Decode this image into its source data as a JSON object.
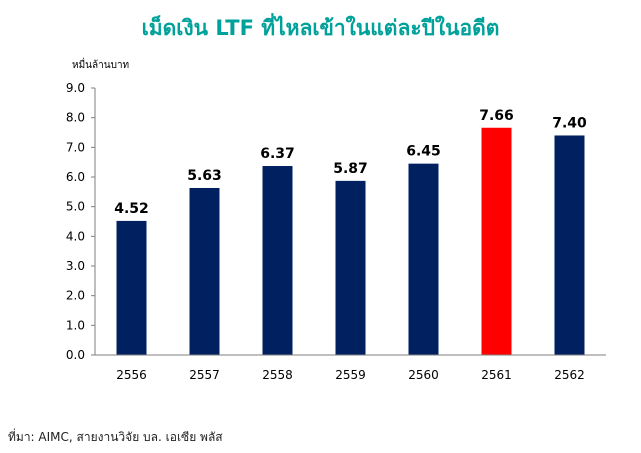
{
  "title": "เม็ดเงิน LTF ที่ไหลเข้าในแต่ละปีในอดีต",
  "unit_label": "หมื่นล้านบาท",
  "source": "ที่มา: AIMC, สายงานวิจัย บล. เอเซีย พลัส",
  "colors": {
    "title": "#00A19A",
    "bar": "#002060",
    "highlight": "#FF0000",
    "axis": "#7F7F7F"
  },
  "chart_data": {
    "type": "bar",
    "categories": [
      "2556",
      "2557",
      "2558",
      "2559",
      "2560",
      "2561",
      "2562"
    ],
    "values": [
      4.52,
      5.63,
      6.37,
      5.87,
      6.45,
      7.66,
      7.4
    ],
    "value_labels": [
      "4.52",
      "5.63",
      "6.37",
      "5.87",
      "6.45",
      "7.66",
      "7.40"
    ],
    "highlight_index": 5,
    "ylim": [
      0,
      9
    ],
    "yticks": [
      "0.0",
      "1.0",
      "2.0",
      "3.0",
      "4.0",
      "5.0",
      "6.0",
      "7.0",
      "8.0",
      "9.0"
    ],
    "grid": false,
    "legend": "none"
  }
}
